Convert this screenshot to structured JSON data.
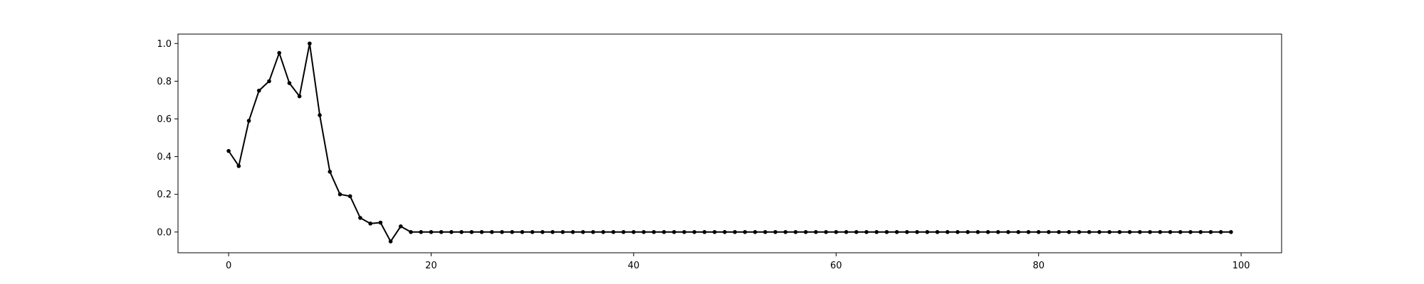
{
  "chart_data": {
    "type": "line",
    "title": "",
    "xlabel": "",
    "ylabel": "",
    "xlim": [
      -5,
      104
    ],
    "ylim": [
      -0.11,
      1.05
    ],
    "xticks": [
      0,
      20,
      40,
      60,
      80,
      100
    ],
    "yticks": [
      0.0,
      0.2,
      0.4,
      0.6,
      0.8,
      1.0
    ],
    "xtick_labels": [
      "0",
      "20",
      "40",
      "60",
      "80",
      "100"
    ],
    "ytick_labels": [
      "0.0",
      "0.2",
      "0.4",
      "0.6",
      "0.8",
      "1.0"
    ],
    "grid": false,
    "legend": "none",
    "series": [
      {
        "color": "#000000",
        "marker": "dot",
        "x": [
          0,
          1,
          2,
          3,
          4,
          5,
          6,
          7,
          8,
          9,
          10,
          11,
          12,
          13,
          14,
          15,
          16,
          17,
          18,
          19,
          20,
          21,
          22,
          23,
          24,
          25,
          26,
          27,
          28,
          29,
          30,
          31,
          32,
          33,
          34,
          35,
          36,
          37,
          38,
          39,
          40,
          41,
          42,
          43,
          44,
          45,
          46,
          47,
          48,
          49,
          50,
          51,
          52,
          53,
          54,
          55,
          56,
          57,
          58,
          59,
          60,
          61,
          62,
          63,
          64,
          65,
          66,
          67,
          68,
          69,
          70,
          71,
          72,
          73,
          74,
          75,
          76,
          77,
          78,
          79,
          80,
          81,
          82,
          83,
          84,
          85,
          86,
          87,
          88,
          89,
          90,
          91,
          92,
          93,
          94,
          95,
          96,
          97,
          98,
          99
        ],
        "values": [
          0.43,
          0.35,
          0.59,
          0.75,
          0.8,
          0.95,
          0.79,
          0.72,
          1.0,
          0.62,
          0.32,
          0.2,
          0.19,
          0.075,
          0.045,
          0.05,
          -0.05,
          0.03,
          0,
          0,
          0,
          0,
          0,
          0,
          0,
          0,
          0,
          0,
          0,
          0,
          0,
          0,
          0,
          0,
          0,
          0,
          0,
          0,
          0,
          0,
          0,
          0,
          0,
          0,
          0,
          0,
          0,
          0,
          0,
          0,
          0,
          0,
          0,
          0,
          0,
          0,
          0,
          0,
          0,
          0,
          0,
          0,
          0,
          0,
          0,
          0,
          0,
          0,
          0,
          0,
          0,
          0,
          0,
          0,
          0,
          0,
          0,
          0,
          0,
          0,
          0,
          0,
          0,
          0,
          0,
          0,
          0,
          0,
          0,
          0,
          0,
          0,
          0,
          0,
          0,
          0,
          0,
          0,
          0,
          0
        ]
      }
    ]
  }
}
